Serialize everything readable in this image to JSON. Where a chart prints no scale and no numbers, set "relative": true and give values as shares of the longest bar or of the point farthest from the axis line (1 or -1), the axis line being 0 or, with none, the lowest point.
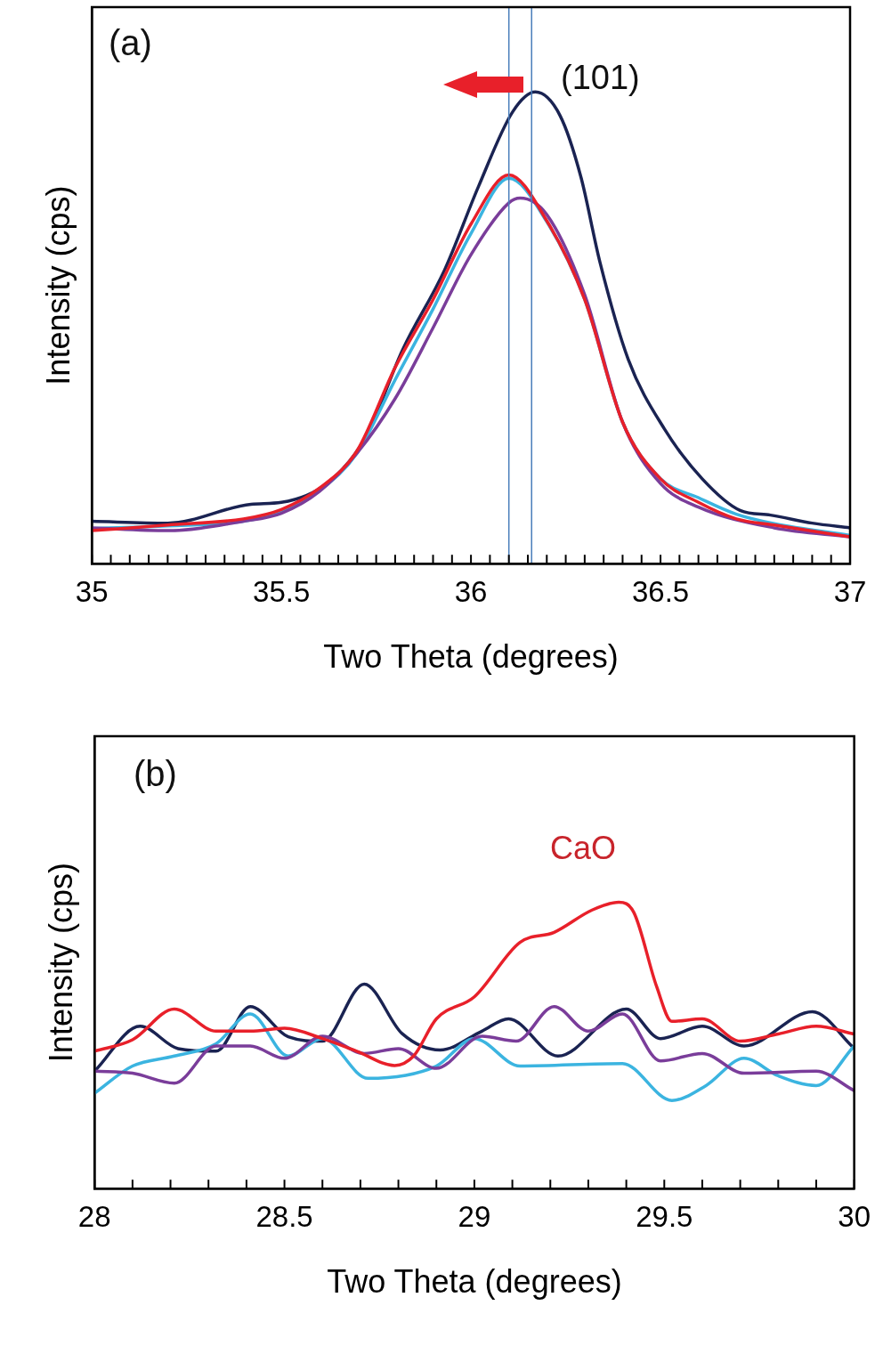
{
  "chart_data": [
    {
      "type": "line",
      "relative": true,
      "xlabel": "Two Theta (degrees)",
      "ylabel": "Intensity (cps)",
      "xlim": [
        35,
        37
      ],
      "xticks": [
        35,
        {
          "value": 35.05,
          "label": null
        },
        {
          "value": 35.1,
          "label": null
        },
        {
          "value": 35.15,
          "label": null
        },
        {
          "value": 35.2,
          "label": null
        },
        {
          "value": 35.25,
          "label": null
        },
        {
          "value": 35.3,
          "label": null
        },
        {
          "value": 35.35,
          "label": null
        },
        {
          "value": 35.4,
          "label": null
        },
        {
          "value": 35.45,
          "label": null
        },
        35.5,
        {
          "value": 35.55,
          "label": null
        },
        {
          "value": 35.6,
          "label": null
        },
        {
          "value": 35.65,
          "label": null
        },
        {
          "value": 35.7,
          "label": null
        },
        {
          "value": 35.75,
          "label": null
        },
        {
          "value": 35.8,
          "label": null
        },
        {
          "value": 35.85,
          "label": null
        },
        {
          "value": 35.9,
          "label": null
        },
        {
          "value": 35.95,
          "label": null
        },
        36,
        {
          "value": 36.05,
          "label": null
        },
        {
          "value": 36.1,
          "label": null
        },
        {
          "value": 36.15,
          "label": null
        },
        {
          "value": 36.2,
          "label": null
        },
        {
          "value": 36.25,
          "label": null
        },
        {
          "value": 36.3,
          "label": null
        },
        {
          "value": 36.35,
          "label": null
        },
        {
          "value": 36.4,
          "label": null
        },
        {
          "value": 36.45,
          "label": null
        },
        36.5,
        {
          "value": 36.55,
          "label": null
        },
        {
          "value": 36.6,
          "label": null
        },
        {
          "value": 36.65,
          "label": null
        },
        {
          "value": 36.7,
          "label": null
        },
        {
          "value": 36.75,
          "label": null
        },
        {
          "value": 36.8,
          "label": null
        },
        {
          "value": 36.85,
          "label": null
        },
        {
          "value": 36.9,
          "label": null
        },
        {
          "value": 36.95,
          "label": null
        },
        37
      ],
      "grid": false,
      "legend": false,
      "marker": "none",
      "line_style": "solid",
      "annotations": [
        "(a)",
        "(101)"
      ],
      "ref_lines": [
        {
          "axis": "x",
          "value": 36.1,
          "color": "#4a7ebb"
        },
        {
          "axis": "x",
          "value": 36.16,
          "color": "#4a7ebb"
        }
      ],
      "series": [
        {
          "color": "#1a2352",
          "x": [
            35.0,
            35.2,
            35.42,
            35.5,
            35.62,
            35.72,
            35.82,
            35.93,
            36.02,
            36.11,
            36.17,
            36.235,
            36.29,
            36.34,
            36.415,
            36.51,
            36.61,
            36.71,
            36.79,
            36.9,
            37.0
          ],
          "values": [
            0.09,
            0.086,
            0.126,
            0.13,
            0.17,
            0.265,
            0.454,
            0.622,
            0.8,
            0.958,
            1.0,
            0.95,
            0.82,
            0.64,
            0.433,
            0.286,
            0.18,
            0.113,
            0.103,
            0.086,
            0.076
          ]
        },
        {
          "color": "#3bb4e0",
          "x": [
            35.0,
            35.2,
            35.4,
            35.5,
            35.6,
            35.7,
            35.8,
            35.9,
            36.0,
            36.1,
            36.2,
            36.3,
            36.4,
            36.5,
            36.6,
            36.7,
            36.8,
            37.0
          ],
          "values": [
            0.075,
            0.08,
            0.09,
            0.11,
            0.155,
            0.235,
            0.39,
            0.54,
            0.7,
            0.817,
            0.725,
            0.56,
            0.3,
            0.18,
            0.14,
            0.105,
            0.085,
            0.06
          ]
        },
        {
          "color": "#7a3d9a",
          "x": [
            35.0,
            35.2,
            35.4,
            35.5,
            35.6,
            35.7,
            35.8,
            35.9,
            36.0,
            36.1,
            36.13,
            36.2,
            36.3,
            36.4,
            36.5,
            36.6,
            36.8,
            37.0
          ],
          "values": [
            0.076,
            0.07,
            0.09,
            0.107,
            0.153,
            0.235,
            0.35,
            0.5,
            0.655,
            0.765,
            0.775,
            0.74,
            0.57,
            0.3,
            0.17,
            0.12,
            0.076,
            0.057
          ]
        },
        {
          "color": "#e8202a",
          "x": [
            35.0,
            35.2,
            35.4,
            35.5,
            35.6,
            35.7,
            35.8,
            35.9,
            36.0,
            36.1,
            36.2,
            36.3,
            36.4,
            36.5,
            36.6,
            36.7,
            36.8,
            37.0
          ],
          "values": [
            0.07,
            0.082,
            0.095,
            0.115,
            0.16,
            0.24,
            0.416,
            0.56,
            0.72,
            0.824,
            0.727,
            0.56,
            0.3,
            0.18,
            0.13,
            0.095,
            0.082,
            0.057
          ]
        }
      ]
    },
    {
      "type": "line",
      "relative": true,
      "xlabel": "Two Theta (degrees)",
      "ylabel": "Intensity (cps)",
      "xlim": [
        28,
        30
      ],
      "xticks": [
        28,
        {
          "value": 28.1,
          "label": null
        },
        {
          "value": 28.2,
          "label": null
        },
        {
          "value": 28.3,
          "label": null
        },
        {
          "value": 28.4,
          "label": null
        },
        28.5,
        {
          "value": 28.6,
          "label": null
        },
        {
          "value": 28.7,
          "label": null
        },
        {
          "value": 28.8,
          "label": null
        },
        {
          "value": 28.9,
          "label": null
        },
        29,
        {
          "value": 29.1,
          "label": null
        },
        {
          "value": 29.2,
          "label": null
        },
        {
          "value": 29.3,
          "label": null
        },
        {
          "value": 29.4,
          "label": null
        },
        29.5,
        {
          "value": 29.6,
          "label": null
        },
        {
          "value": 29.7,
          "label": null
        },
        {
          "value": 29.8,
          "label": null
        },
        {
          "value": 29.9,
          "label": null
        },
        30
      ],
      "grid": false,
      "legend": false,
      "marker": "none",
      "line_style": "solid",
      "annotations": [
        "(b)",
        "CaO"
      ],
      "series": [
        {
          "color": "#1a2352",
          "x": [
            28.0,
            28.12,
            28.22,
            28.32,
            28.41,
            28.51,
            28.6,
            28.71,
            28.81,
            28.91,
            29.02,
            29.09,
            29.22,
            29.4,
            29.49,
            29.6,
            29.71,
            29.89,
            30.0
          ],
          "values": [
            0.41,
            0.567,
            0.489,
            0.48,
            0.636,
            0.53,
            0.515,
            0.714,
            0.541,
            0.484,
            0.55,
            0.593,
            0.463,
            0.627,
            0.524,
            0.567,
            0.498,
            0.618,
            0.49
          ]
        },
        {
          "color": "#3bb4e0",
          "x": [
            28.0,
            28.1,
            28.21,
            28.32,
            28.41,
            28.51,
            28.6,
            28.72,
            28.9,
            29.0,
            29.12,
            29.39,
            29.52,
            29.61,
            29.71,
            29.8,
            29.9,
            30.0
          ],
          "values": [
            0.333,
            0.428,
            0.463,
            0.506,
            0.61,
            0.463,
            0.524,
            0.385,
            0.428,
            0.524,
            0.428,
            0.437,
            0.308,
            0.36,
            0.455,
            0.394,
            0.36,
            0.498
          ]
        },
        {
          "color": "#7a3d9a",
          "x": [
            28.0,
            28.1,
            28.21,
            28.32,
            28.41,
            28.5,
            28.6,
            28.71,
            28.8,
            28.9,
            29.02,
            29.11,
            29.21,
            29.3,
            29.39,
            29.49,
            29.6,
            29.71,
            29.9,
            30.0
          ],
          "values": [
            0.41,
            0.403,
            0.368,
            0.498,
            0.498,
            0.455,
            0.532,
            0.472,
            0.489,
            0.42,
            0.532,
            0.515,
            0.636,
            0.55,
            0.61,
            0.446,
            0.472,
            0.403,
            0.41,
            0.342
          ]
        },
        {
          "color": "#e8202a",
          "x": [
            28.0,
            28.1,
            28.21,
            28.32,
            28.41,
            28.5,
            28.6,
            28.69,
            28.79,
            28.84,
            28.9,
            29.0,
            29.12,
            29.21,
            29.31,
            29.38,
            29.42,
            29.48,
            29.52,
            29.6,
            29.7,
            29.8,
            29.9,
            30.0
          ],
          "values": [
            0.48,
            0.52,
            0.627,
            0.55,
            0.55,
            0.56,
            0.524,
            0.48,
            0.43,
            0.463,
            0.593,
            0.67,
            0.86,
            0.895,
            0.973,
            1.0,
            0.964,
            0.705,
            0.584,
            0.593,
            0.515,
            0.54,
            0.567,
            0.54
          ]
        }
      ]
    }
  ]
}
